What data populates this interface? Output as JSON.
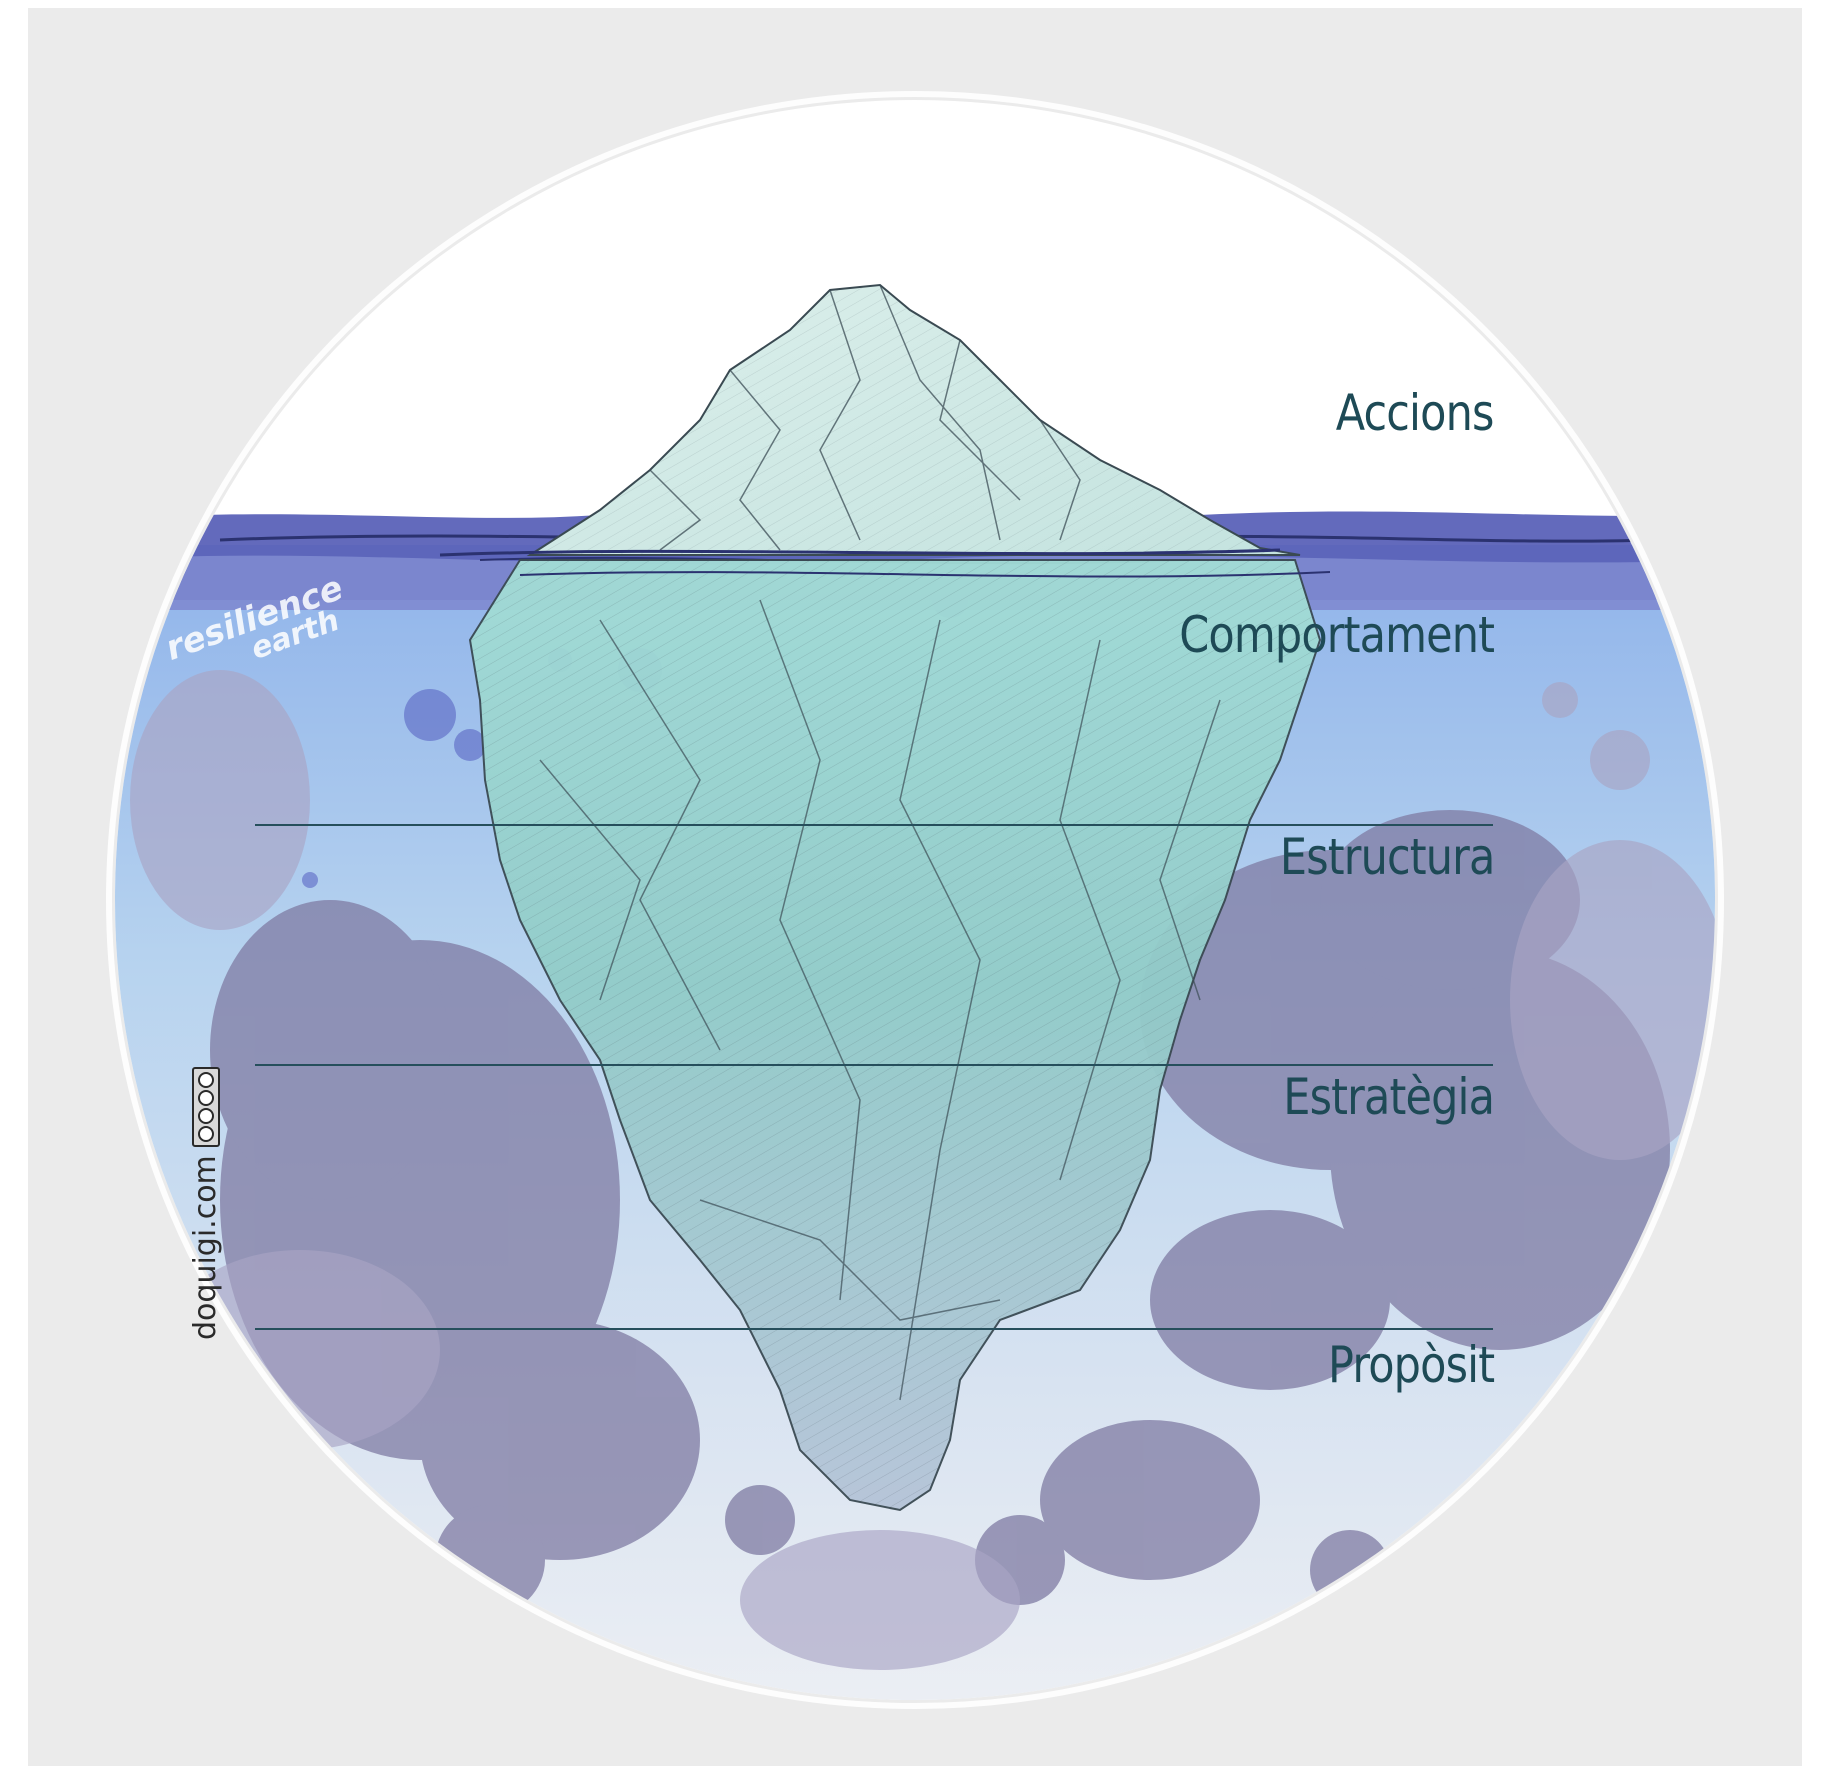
{
  "levels": [
    {
      "label": "Accions"
    },
    {
      "label": "Comportament"
    },
    {
      "label": "Estructura"
    },
    {
      "label": "Estratègia"
    },
    {
      "label": "Propòsit"
    }
  ],
  "watermark": {
    "line1": "resilience",
    "line2": "earth"
  },
  "credit": {
    "text": "doquigi.com"
  },
  "license_icon": "creative-commons-by-nc-sa-icon",
  "colors": {
    "label": "#1e4a56",
    "divider": "#264f5c",
    "sky": "#ffffff",
    "sea_surface": "#5b62b8",
    "water": "#a9c9ea",
    "ice_top": "#e4f1ee",
    "ice_under": "#8fd3cc",
    "ink_splash": "#7f7ba3"
  }
}
